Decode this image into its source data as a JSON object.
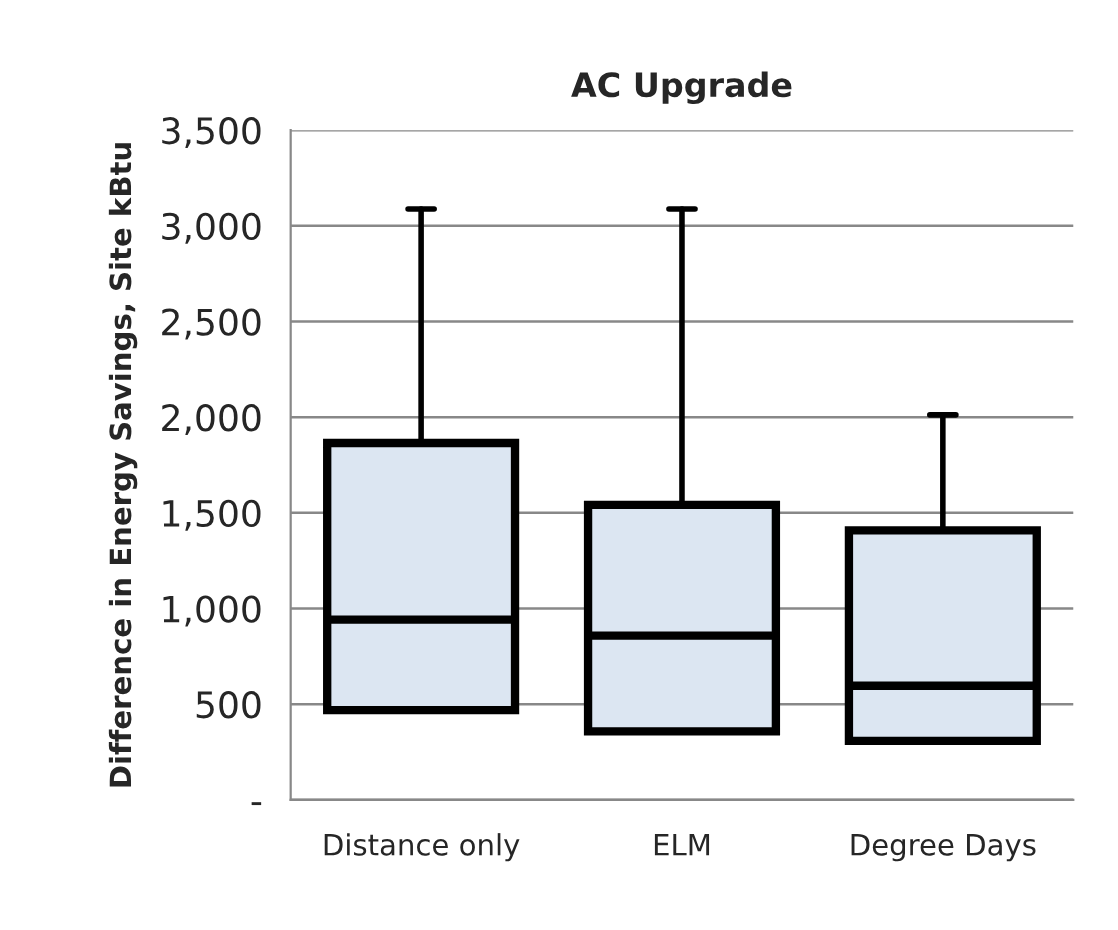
{
  "chart_data": {
    "type": "box",
    "title": "AC Upgrade",
    "ylabel": "Difference in Energy Savings, Site kBtu",
    "categories": [
      "Distance only",
      "ELM",
      "Degree Days"
    ],
    "boxes": [
      {
        "low": 469,
        "q1": 469,
        "median": 942,
        "q3": 1865,
        "high": 3088
      },
      {
        "low": 358,
        "q1": 358,
        "median": 858,
        "q3": 1542,
        "high": 3088
      },
      {
        "low": 308,
        "q1": 308,
        "median": 596,
        "q3": 1408,
        "high": 2012
      }
    ],
    "color": "#dce6f2",
    "ylim": [
      0,
      3500
    ],
    "yticks": [
      {
        "value": 0,
        "label": "-"
      },
      {
        "value": 500,
        "label": "500"
      },
      {
        "value": 1000,
        "label": "1,000"
      },
      {
        "value": 1500,
        "label": "1,500"
      },
      {
        "value": 2000,
        "label": "2,000"
      },
      {
        "value": 2500,
        "label": "2,500"
      },
      {
        "value": 3000,
        "label": "3,000"
      },
      {
        "value": 3500,
        "label": "3,500"
      }
    ],
    "grid": "y"
  }
}
